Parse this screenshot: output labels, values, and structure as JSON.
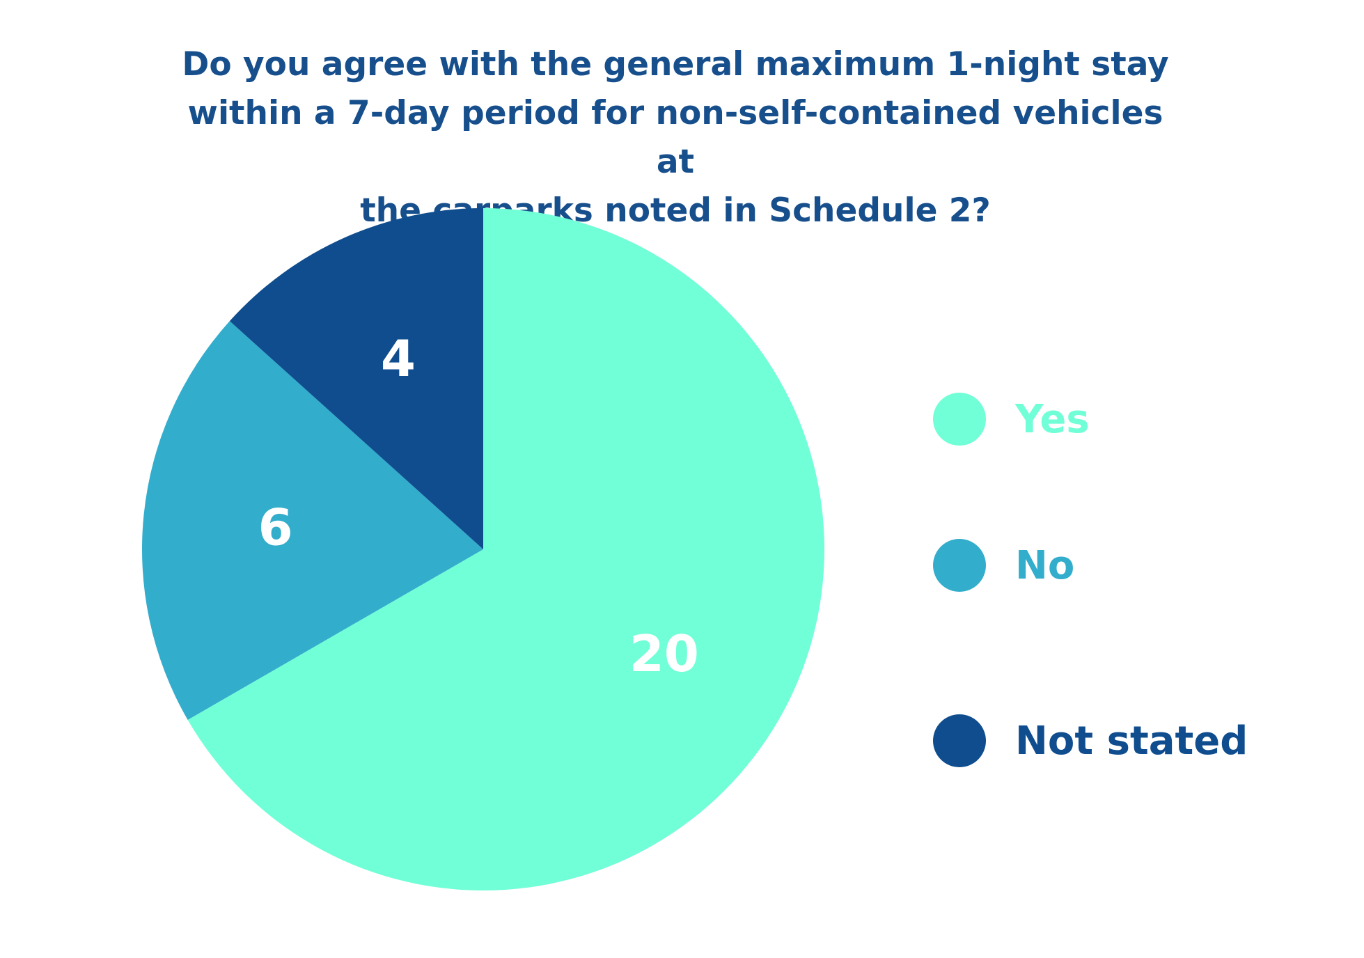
{
  "chart_data": {
    "type": "pie",
    "title_lines": [
      "Do you agree with the general maximum 1-night stay",
      "within a 7-day period for non-self-contained vehicles at",
      "the carparks noted in Schedule 2?"
    ],
    "categories": [
      "Yes",
      "No",
      "Not stated"
    ],
    "values": [
      20,
      6,
      4
    ],
    "colors": [
      "#70ffd6",
      "#33adcc",
      "#0f4d8e"
    ],
    "start_angle_deg": 0,
    "direction": "clockwise",
    "legend_position": "right",
    "legend_text_colors": [
      "#70ffd6",
      "#33adcc",
      "#0f4d8e"
    ],
    "data_label_color": "#ffffff",
    "title_color": "#174f8c"
  }
}
